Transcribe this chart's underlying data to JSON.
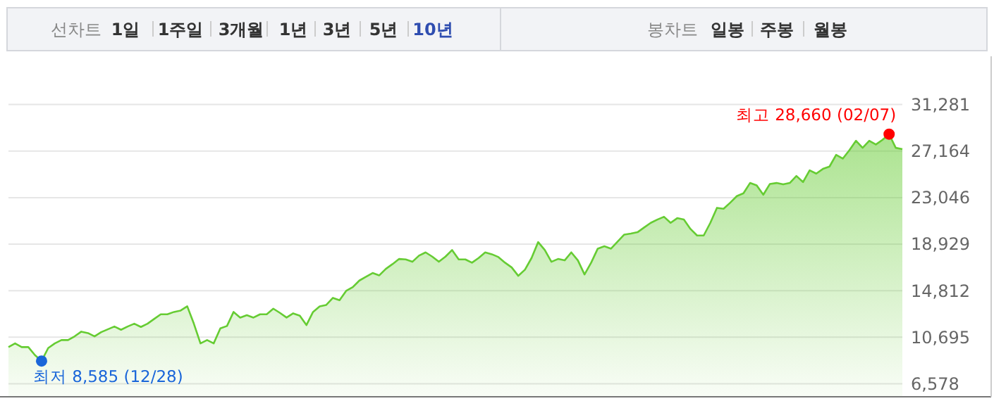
{
  "chart_data": {
    "type": "area",
    "categories": [
      null,
      null,
      null,
      null,
      null,
      null,
      null,
      null,
      null,
      null,
      null,
      null,
      null,
      null,
      null,
      null,
      null,
      null,
      null,
      null,
      null,
      null,
      null,
      null,
      null,
      null,
      null,
      null,
      null,
      null,
      null,
      null,
      null,
      null,
      null,
      null,
      null,
      null,
      null,
      null,
      null,
      null,
      null,
      null,
      null,
      null,
      null,
      null,
      null,
      null,
      null,
      null,
      null,
      null,
      null,
      null,
      null,
      null,
      null,
      null,
      null,
      null,
      null,
      null,
      null,
      null,
      null,
      null,
      null,
      null,
      null,
      null,
      null,
      null,
      null,
      null,
      null,
      null,
      null,
      null,
      null,
      null,
      null,
      null,
      null,
      null,
      null,
      null,
      null,
      null,
      null,
      null,
      null,
      null,
      null,
      null,
      null,
      null,
      null,
      null,
      null,
      null,
      null,
      null,
      null,
      null,
      null,
      null,
      null,
      null,
      null,
      null,
      null,
      null,
      null,
      null,
      null,
      null,
      null,
      null,
      null,
      null,
      null,
      null,
      null,
      null,
      null,
      null,
      null,
      null,
      null,
      null,
      null,
      null,
      null,
      null
    ],
    "series": [
      {
        "color": "#66cc33",
        "values": [
          9815,
          10147,
          9815,
          9815,
          9110,
          8585,
          9732,
          10147,
          10438,
          10438,
          10770,
          11185,
          11060,
          10770,
          11143,
          11392,
          11641,
          11350,
          11641,
          11890,
          11600,
          11890,
          12305,
          12720,
          12720,
          12928,
          13052,
          13426,
          11890,
          10147,
          10438,
          10147,
          11475,
          11683,
          12928,
          12430,
          12637,
          12430,
          12720,
          12720,
          13218,
          12844,
          12430,
          12803,
          12595,
          11766,
          12928,
          13426,
          13550,
          14173,
          13966,
          14795,
          15127,
          15708,
          16040,
          16372,
          16165,
          16746,
          17161,
          17617,
          17575,
          17368,
          17908,
          18198,
          17825,
          17368,
          17825,
          18406,
          17575,
          17575,
          17285,
          17700,
          18198,
          18032,
          17783,
          17285,
          16870,
          16123,
          16663,
          17700,
          19111,
          18406,
          17368,
          17617,
          17492,
          18198,
          17492,
          16248,
          17285,
          18530,
          18737,
          18530,
          19152,
          19775,
          19858,
          19982,
          20397,
          20813,
          21103,
          21352,
          20813,
          21228,
          21103,
          20273,
          19692,
          19692,
          20813,
          22141,
          22058,
          22597,
          23178,
          23427,
          24340,
          24132,
          23302,
          24257,
          24340,
          24215,
          24340,
          24963,
          24423,
          25461,
          25170,
          25585,
          25793,
          26830,
          26498,
          27245,
          28075,
          27452,
          28075,
          27743,
          28158,
          28660,
          27452,
          27328
        ]
      },
      {
        "type": "scatter",
        "color": "#1a66d9",
        "values": [
          null,
          null,
          null,
          null,
          null,
          8585,
          null,
          null,
          null,
          null,
          null,
          null,
          null,
          null,
          null,
          null,
          null,
          null,
          null,
          null,
          null,
          null,
          null,
          null,
          null,
          null,
          null,
          null,
          null,
          null,
          null,
          null,
          null,
          null,
          null,
          null,
          null,
          null,
          null,
          null,
          null,
          null,
          null,
          null,
          null,
          null,
          null,
          null,
          null,
          null,
          null,
          null,
          null,
          null,
          null,
          null,
          null,
          null,
          null,
          null,
          null,
          null,
          null,
          null,
          null,
          null,
          null,
          null,
          null,
          null,
          null,
          null,
          null,
          null,
          null,
          null,
          null,
          null,
          null,
          null,
          null,
          null,
          null,
          null,
          null,
          null,
          null,
          null,
          null,
          null,
          null,
          null,
          null,
          null,
          null,
          null,
          null,
          null,
          null,
          null,
          null,
          null,
          null,
          null,
          null,
          null,
          null,
          null,
          null,
          null,
          null,
          null,
          null,
          null,
          null,
          null,
          null,
          null,
          null,
          null,
          null,
          null,
          null,
          null,
          null,
          null,
          null,
          null,
          null,
          null,
          null,
          null,
          null,
          null,
          null,
          null
        ]
      },
      {
        "type": "scatter",
        "color": "#ff0000",
        "values": [
          null,
          null,
          null,
          null,
          null,
          null,
          null,
          null,
          null,
          null,
          null,
          null,
          null,
          null,
          null,
          null,
          null,
          null,
          null,
          null,
          null,
          null,
          null,
          null,
          null,
          null,
          null,
          null,
          null,
          null,
          null,
          null,
          null,
          null,
          null,
          null,
          null,
          null,
          null,
          null,
          null,
          null,
          null,
          null,
          null,
          null,
          null,
          null,
          null,
          null,
          null,
          null,
          null,
          null,
          null,
          null,
          null,
          null,
          null,
          null,
          null,
          null,
          null,
          null,
          null,
          null,
          null,
          null,
          null,
          null,
          null,
          null,
          null,
          null,
          null,
          null,
          null,
          null,
          null,
          null,
          null,
          null,
          null,
          null,
          null,
          null,
          null,
          null,
          null,
          null,
          null,
          null,
          null,
          null,
          null,
          null,
          null,
          null,
          null,
          null,
          null,
          null,
          null,
          null,
          null,
          null,
          null,
          null,
          null,
          null,
          null,
          null,
          null,
          null,
          null,
          null,
          null,
          null,
          null,
          null,
          null,
          null,
          null,
          null,
          null,
          null,
          null,
          null,
          null,
          null,
          null,
          null,
          null,
          28660,
          null,
          null
        ]
      }
    ],
    "ylim": [
      5420,
      31281
    ],
    "yticks": [
      {
        "value": 6578,
        "label": "6,578"
      },
      {
        "value": 10695,
        "label": "10,695"
      },
      {
        "value": 14812,
        "label": "14,812"
      },
      {
        "value": 18929,
        "label": "18,929"
      },
      {
        "value": 23046,
        "label": "23,046"
      },
      {
        "value": 27164,
        "label": "27,164"
      },
      {
        "value": 31281,
        "label": "31,281"
      }
    ],
    "grid": "y",
    "tick_labels": "y",
    "annotations": [
      "최저 8,585 (12/28)",
      "최고 28,660 (02/07)",
      "선차트",
      "1일",
      "1주일",
      "3개월",
      "1년",
      "3년",
      "5년",
      "10년",
      "봉차트",
      "일봉",
      "주봉",
      "월봉"
    ]
  }
}
